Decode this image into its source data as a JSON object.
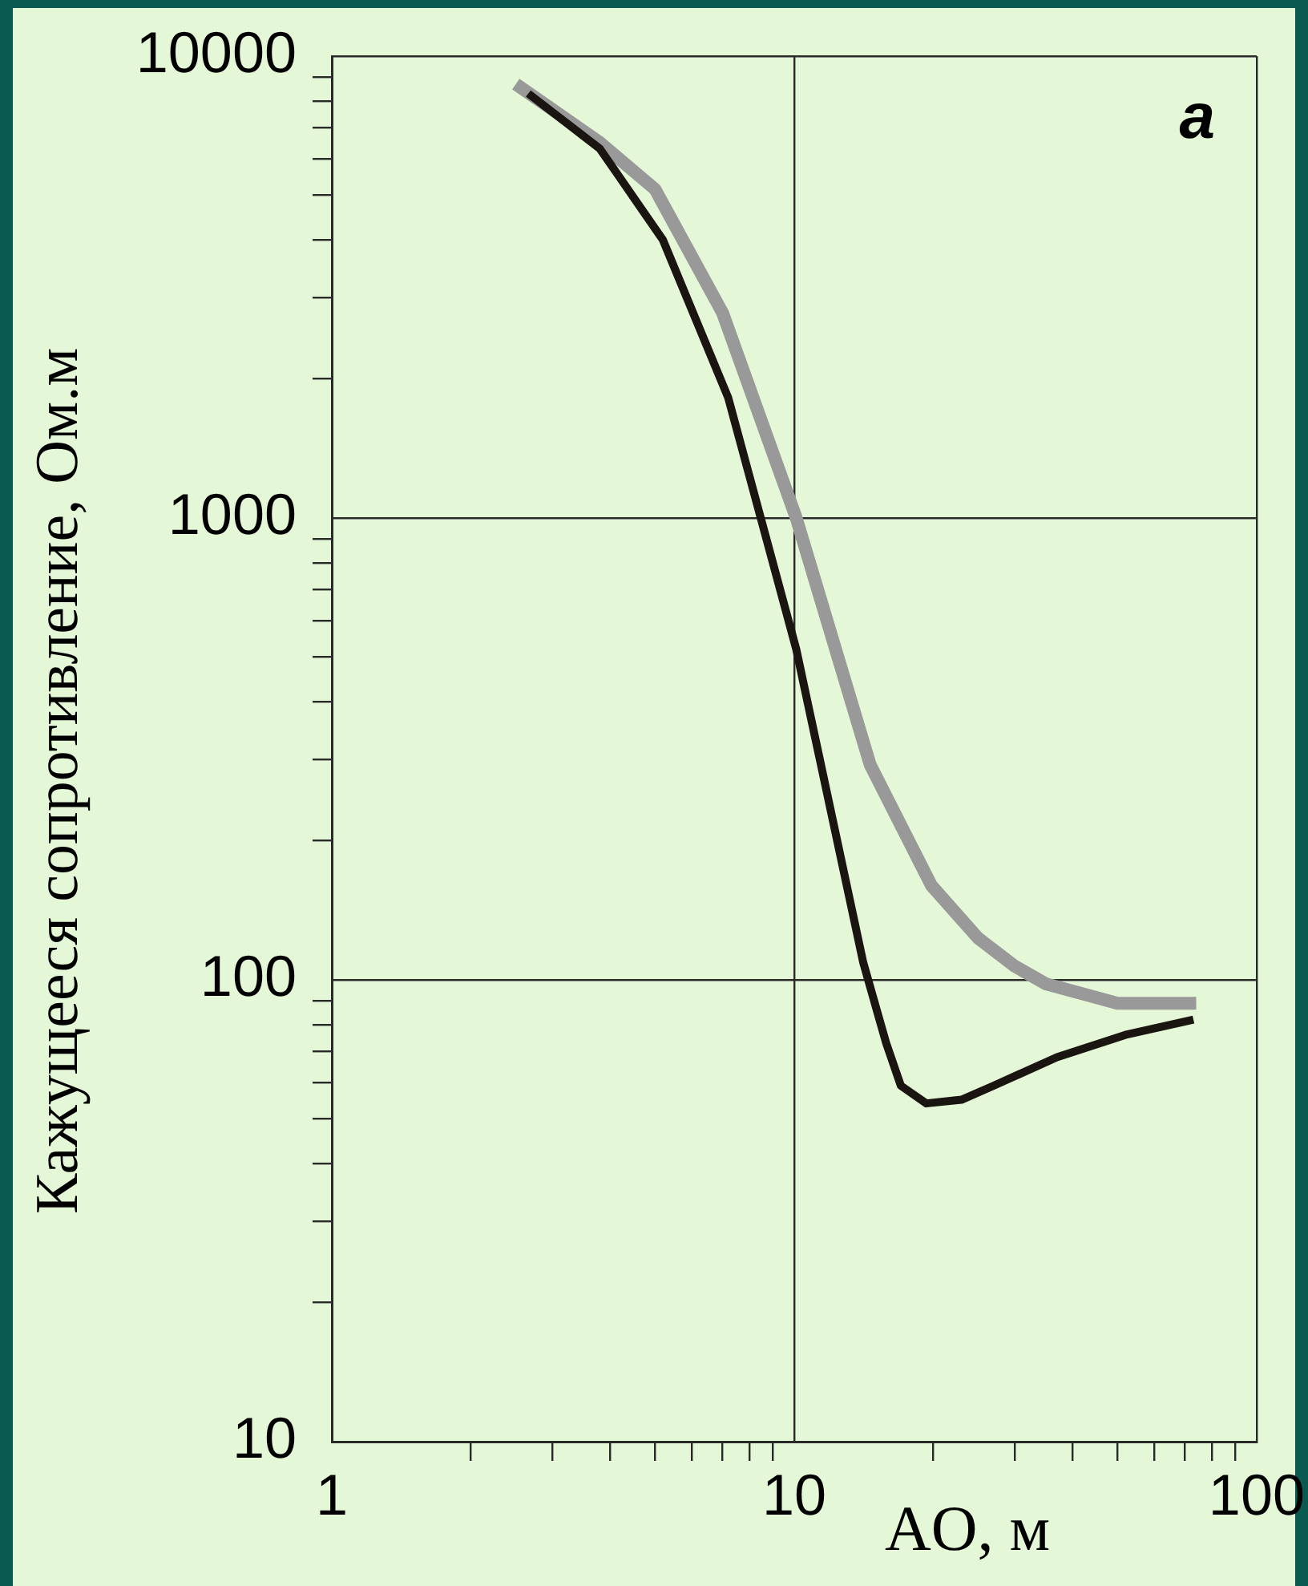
{
  "chart_data": {
    "type": "line",
    "xlabel": "AO, м",
    "ylabel": "Кажущееся сопротивление, Ом.м",
    "annotations": [
      "а"
    ],
    "log": "xy",
    "grid": true,
    "legend": false,
    "marker": "none",
    "line_style": "solid",
    "xlim": [
      1,
      100
    ],
    "ylim": [
      10,
      10000
    ],
    "xticks": [
      1,
      {
        "value": 2,
        "label": null
      },
      {
        "value": 3,
        "label": null
      },
      {
        "value": 4,
        "label": null
      },
      {
        "value": 5,
        "label": null
      },
      {
        "value": 6,
        "label": null
      },
      {
        "value": 7,
        "label": null
      },
      {
        "value": 8,
        "label": null
      },
      {
        "value": 9,
        "label": null
      },
      10,
      {
        "value": 20,
        "label": null
      },
      {
        "value": 30,
        "label": null
      },
      {
        "value": 40,
        "label": null
      },
      {
        "value": 50,
        "label": null
      },
      {
        "value": 60,
        "label": null
      },
      {
        "value": 70,
        "label": null
      },
      {
        "value": 80,
        "label": null
      },
      {
        "value": 90,
        "label": null
      },
      100
    ],
    "yticks": [
      10,
      {
        "value": 20,
        "label": null
      },
      {
        "value": 30,
        "label": null
      },
      {
        "value": 40,
        "label": null
      },
      {
        "value": 50,
        "label": null
      },
      {
        "value": 60,
        "label": null
      },
      {
        "value": 70,
        "label": null
      },
      {
        "value": 80,
        "label": null
      },
      {
        "value": 90,
        "label": null
      },
      100,
      {
        "value": 200,
        "label": null
      },
      {
        "value": 300,
        "label": null
      },
      {
        "value": 400,
        "label": null
      },
      {
        "value": 500,
        "label": null
      },
      {
        "value": 600,
        "label": null
      },
      {
        "value": 700,
        "label": null
      },
      {
        "value": 800,
        "label": null
      },
      {
        "value": 900,
        "label": null
      },
      1000,
      {
        "value": 2000,
        "label": null
      },
      {
        "value": 3000,
        "label": null
      },
      {
        "value": 4000,
        "label": null
      },
      {
        "value": 5000,
        "label": null
      },
      {
        "value": 6000,
        "label": null
      },
      {
        "value": 7000,
        "label": null
      },
      {
        "value": 8000,
        "label": null
      },
      {
        "value": 9000,
        "label": null
      },
      10000
    ],
    "series": [
      {
        "color": "#999999",
        "x": [
          2.5,
          3.8,
          5,
          7,
          10.1,
          14.6,
          19.8,
          25,
          30,
          35,
          50,
          74
        ],
        "values": [
          8700,
          6500,
          5150,
          2780,
          1000,
          292,
          160,
          123,
          107,
          98,
          89,
          89
        ]
      },
      {
        "color": "#1a1510",
        "x": [
          2.66,
          3.8,
          5.2,
          7.2,
          10.1,
          14.1,
          15.8,
          17,
          19.3,
          23,
          27,
          37,
          52,
          73
        ],
        "values": [
          8300,
          6300,
          4000,
          1820,
          520,
          109,
          73,
          59,
          54,
          55,
          59,
          68,
          76,
          82
        ]
      }
    ]
  }
}
